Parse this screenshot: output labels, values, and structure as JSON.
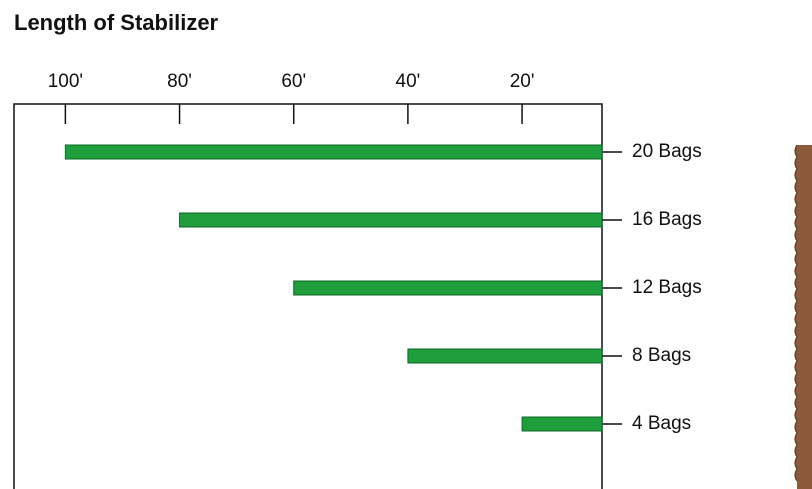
{
  "chart_data": {
    "type": "bar",
    "orientation": "horizontal",
    "title": "Length of Stabilizer",
    "categories": [
      "20 Bags",
      "16 Bags",
      "12 Bags",
      "8 Bags",
      "4 Bags"
    ],
    "values": [
      100,
      80,
      60,
      40,
      20
    ],
    "color": "#1e9e3c",
    "xlim": [
      109,
      6
    ],
    "xticks": [
      {
        "value": 100,
        "label": "100'"
      },
      {
        "value": 80,
        "label": "80'"
      },
      {
        "value": 60,
        "label": "60'"
      },
      {
        "value": 40,
        "label": "40'"
      },
      {
        "value": 20,
        "label": "20'"
      }
    ]
  }
}
